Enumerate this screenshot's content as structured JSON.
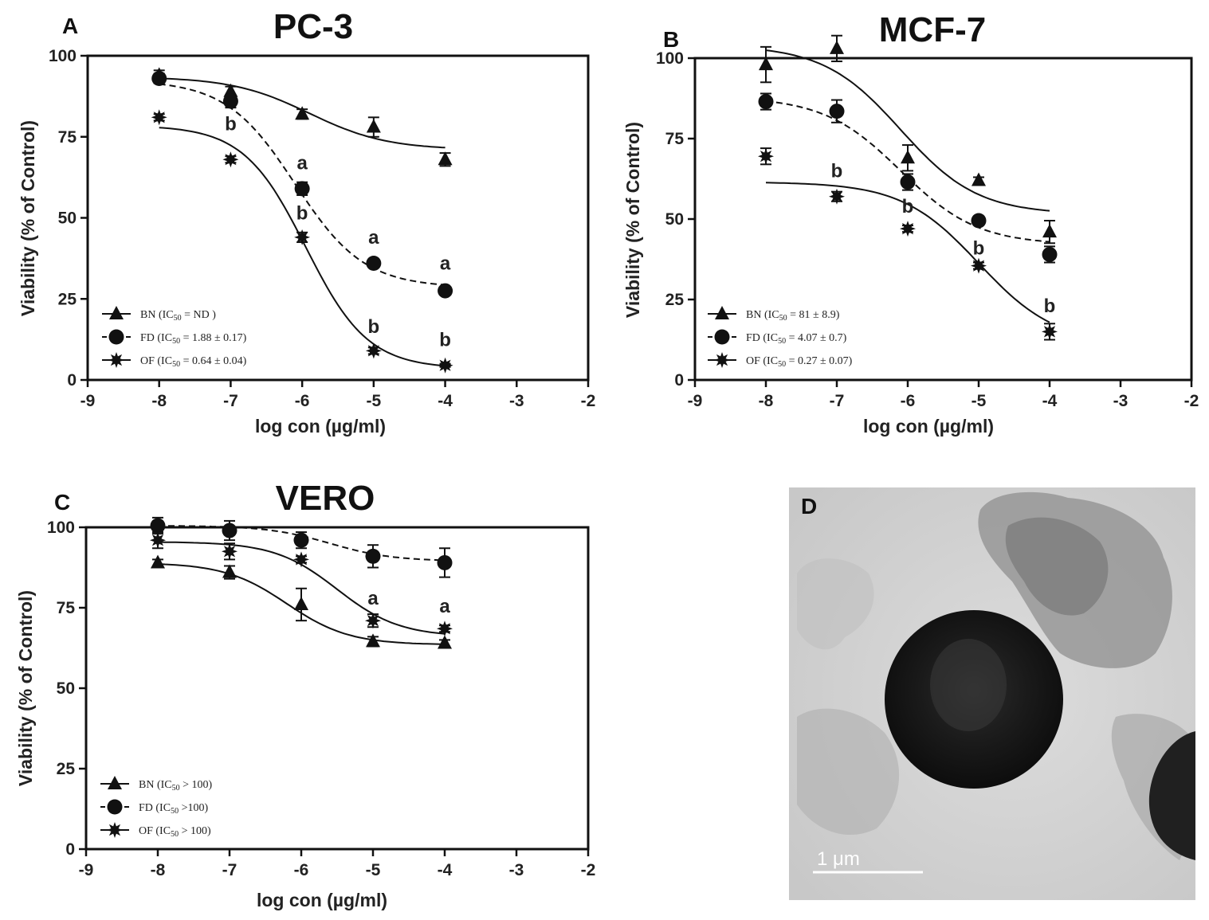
{
  "chart_data": [
    {
      "panel": "A",
      "type": "scatter",
      "title": "PC-3",
      "xlabel": "log con (µg/ml)",
      "ylabel": "Viability (% of Control)",
      "xlim": [
        -9,
        -2
      ],
      "ylim": [
        0,
        100
      ],
      "xticks": [
        -9,
        -8,
        -7,
        -6,
        -5,
        -4,
        -3,
        -2
      ],
      "yticks": [
        0,
        25,
        50,
        75,
        100
      ],
      "series": [
        {
          "name": "BN",
          "legend": "BN (IC",
          "legend_sub": "50",
          "legend_rest": " = ND )",
          "marker": "triangle",
          "dashed": false,
          "x": [
            -8,
            -7,
            -6,
            -5,
            -4
          ],
          "y": [
            94,
            89,
            82,
            78,
            68
          ],
          "err": [
            1.5,
            1.5,
            1.5,
            3,
            2
          ],
          "fit": {
            "top": 93.5,
            "bottom": 71,
            "logec50": -5.9,
            "hill": 0.8
          }
        },
        {
          "name": "FD",
          "legend": "FD (IC",
          "legend_sub": "50",
          "legend_rest": " = 1.88 ± 0.17)",
          "marker": "circle",
          "dashed": true,
          "x": [
            -8,
            -7,
            -6,
            -5,
            -4
          ],
          "y": [
            93,
            86,
            59,
            36,
            27.5
          ],
          "err": [
            1.5,
            2,
            2,
            1,
            1
          ],
          "fit": {
            "top": 92.5,
            "bottom": 28.5,
            "logec50": -6.1,
            "hill": 0.9
          }
        },
        {
          "name": "OF",
          "legend": "OF (IC",
          "legend_sub": "50",
          "legend_rest": " = 0.64 ± 0.04)",
          "marker": "star",
          "dashed": false,
          "x": [
            -8,
            -7,
            -6,
            -5,
            -4
          ],
          "y": [
            81,
            68,
            44,
            9,
            4.5
          ],
          "err": [
            1,
            1,
            1.5,
            1,
            0.5
          ],
          "fit": {
            "top": 78.5,
            "bottom": 3.5,
            "logec50": -5.95,
            "hill": 1.0
          }
        }
      ],
      "annotations": [
        {
          "text": "b",
          "x": -7,
          "y": 77
        },
        {
          "text": "a",
          "x": -6,
          "y": 65
        },
        {
          "text": "b",
          "x": -6,
          "y": 49.5
        },
        {
          "text": "a",
          "x": -5,
          "y": 42
        },
        {
          "text": "a",
          "x": -4,
          "y": 34
        },
        {
          "text": "b",
          "x": -5,
          "y": 14.5
        },
        {
          "text": "b",
          "x": -4,
          "y": 10.5
        }
      ]
    },
    {
      "panel": "B",
      "type": "scatter",
      "title": "MCF-7",
      "xlabel": "log con (µg/ml)",
      "ylabel": "Viability (%  of Control)",
      "xlim": [
        -9,
        -2
      ],
      "ylim": [
        0,
        100
      ],
      "xticks": [
        -9,
        -8,
        -7,
        -6,
        -5,
        -4,
        -3,
        -2
      ],
      "yticks": [
        0,
        25,
        50,
        75,
        100
      ],
      "series": [
        {
          "name": "BN",
          "legend": "BN (IC",
          "legend_sub": "50",
          "legend_rest": " = 81 ± 8.9)",
          "marker": "triangle",
          "dashed": false,
          "x": [
            -8,
            -7,
            -6,
            -5,
            -4
          ],
          "y": [
            98,
            103,
            69,
            62,
            46
          ],
          "err": [
            5.5,
            4,
            4,
            1,
            3.5
          ],
          "fit": {
            "top": 104,
            "bottom": 51.5,
            "logec50": -6.1,
            "hill": 0.8
          }
        },
        {
          "name": "FD",
          "legend": "FD (IC",
          "legend_sub": "50",
          "legend_rest": " = 4.07 ± 0.7)",
          "marker": "circle",
          "dashed": true,
          "x": [
            -8,
            -7,
            -6,
            -5,
            -4
          ],
          "y": [
            86.5,
            83.5,
            61.5,
            49.5,
            39
          ],
          "err": [
            2.5,
            3.5,
            2.5,
            1,
            2.5
          ],
          "fit": {
            "top": 88,
            "bottom": 42,
            "logec50": -6.1,
            "hill": 0.8
          }
        },
        {
          "name": "OF",
          "legend": "OF (IC",
          "legend_sub": "50",
          "legend_rest": " = 0.27 ± 0.07)",
          "marker": "star",
          "dashed": false,
          "x": [
            -8,
            -7,
            -6,
            -5,
            -4
          ],
          "y": [
            69.5,
            57,
            47,
            35.5,
            15
          ],
          "err": [
            2.5,
            1.5,
            1,
            1,
            2.5
          ],
          "fit": {
            "top": 61.5,
            "bottom": 11,
            "logec50": -5.0,
            "hill": 0.8
          }
        }
      ],
      "annotations": [
        {
          "text": "b",
          "x": -7,
          "y": 63
        },
        {
          "text": "b",
          "x": -6,
          "y": 52
        },
        {
          "text": "b",
          "x": -5,
          "y": 39
        },
        {
          "text": "b",
          "x": -4,
          "y": 21
        }
      ]
    },
    {
      "panel": "C",
      "type": "scatter",
      "title": "VERO",
      "xlabel": "log con (µg/ml)",
      "ylabel": "Viability (% of Control)",
      "xlim": [
        -9,
        -2
      ],
      "ylim": [
        0,
        100
      ],
      "xticks": [
        -9,
        -8,
        -7,
        -6,
        -5,
        -4,
        -3,
        -2
      ],
      "yticks": [
        0,
        25,
        50,
        75,
        100
      ],
      "series": [
        {
          "name": "BN",
          "legend": "BN (IC",
          "legend_sub": "50",
          "legend_rest": " > 100)",
          "marker": "triangle",
          "dashed": false,
          "x": [
            -8,
            -7,
            -6,
            -5,
            -4
          ],
          "y": [
            89,
            86,
            76,
            64.5,
            64
          ],
          "err": [
            1,
            2,
            5,
            1.5,
            1
          ],
          "fit": {
            "top": 89,
            "bottom": 63.5,
            "logec50": -6.2,
            "hill": 1.0
          }
        },
        {
          "name": "FD",
          "legend": "FD (IC",
          "legend_sub": "50",
          "legend_rest": " >100)",
          "marker": "circle",
          "dashed": true,
          "x": [
            -8,
            -7,
            -6,
            -5,
            -4
          ],
          "y": [
            100.5,
            99,
            96,
            91,
            89
          ],
          "err": [
            2.5,
            3,
            2.5,
            3.5,
            4.5
          ],
          "fit": {
            "top": 100.5,
            "bottom": 89.5,
            "logec50": -5.6,
            "hill": 1.0
          }
        },
        {
          "name": "OF",
          "legend": "OF (IC",
          "legend_sub": "50",
          "legend_rest": " > 100)",
          "marker": "star",
          "dashed": false,
          "x": [
            -8,
            -7,
            -6,
            -5,
            -4
          ],
          "y": [
            96,
            92.5,
            90,
            71,
            68.5
          ],
          "err": [
            2.5,
            2.5,
            1,
            2,
            1
          ],
          "fit": {
            "top": 95.5,
            "bottom": 66,
            "logec50": -5.5,
            "hill": 1.0
          }
        }
      ],
      "annotations": [
        {
          "text": "a",
          "x": -5,
          "y": 76
        },
        {
          "text": "a",
          "x": -4,
          "y": 73.5
        }
      ]
    }
  ],
  "micrograph": {
    "panel": "D",
    "scale_label": "1 μm",
    "colors": {
      "background": "#d4d4d4",
      "particle": "#161616"
    }
  }
}
